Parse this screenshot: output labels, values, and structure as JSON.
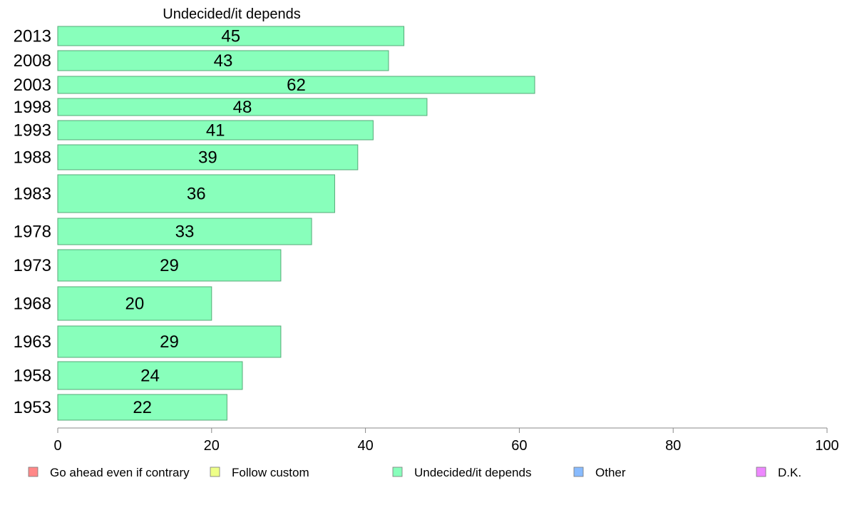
{
  "chart_data": {
    "type": "bar",
    "orientation": "horizontal",
    "title": "Undecided/it depends",
    "xlabel": "",
    "ylabel": "",
    "xlim": [
      0,
      100
    ],
    "x_ticks": [
      0,
      20,
      40,
      60,
      80,
      100
    ],
    "grid": false,
    "legend_position": "bottom",
    "categories": [
      "2013",
      "2008",
      "2003",
      "1998",
      "1993",
      "1988",
      "1983",
      "1978",
      "1973",
      "1968",
      "1963",
      "1958",
      "1953"
    ],
    "series": [
      {
        "name": "Undecided/it depends",
        "color": "#88ffbb",
        "values": [
          45,
          43,
          62,
          48,
          41,
          39,
          36,
          33,
          29,
          20,
          29,
          24,
          22
        ]
      }
    ],
    "legend": [
      {
        "label": "Go ahead even if contrary",
        "color": "#ff8888"
      },
      {
        "label": "Follow custom",
        "color": "#eeff88"
      },
      {
        "label": "Undecided/it depends",
        "color": "#88ffbb"
      },
      {
        "label": "Other",
        "color": "#88bbff"
      },
      {
        "label": "D.K.",
        "color": "#ee88ff"
      }
    ]
  }
}
